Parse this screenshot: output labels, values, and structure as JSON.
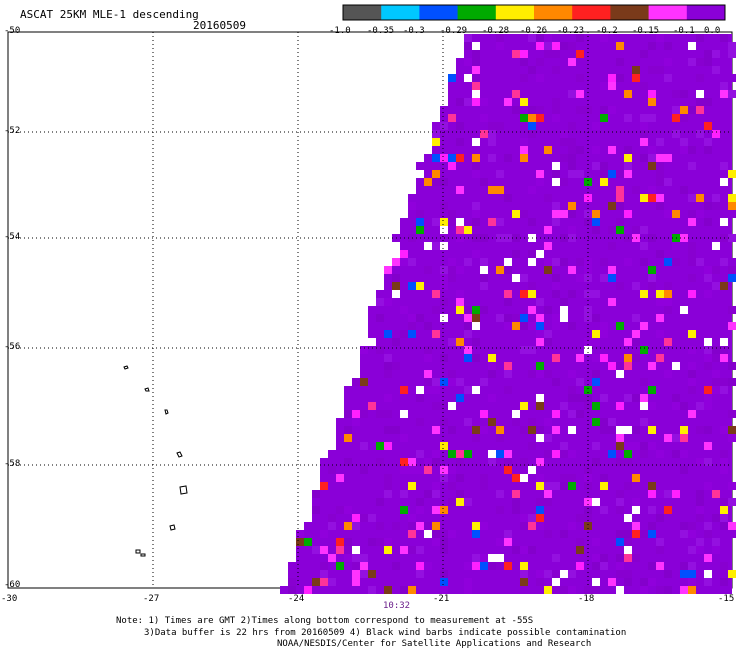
{
  "header": {
    "title": "ASCAT 25KM MLE-1 descending",
    "date": "20160509"
  },
  "colorbar": {
    "labels": [
      "-1.0",
      "-0.35",
      "-0.3",
      "-0.29",
      "-0.28",
      "-0.26",
      "-0.23",
      "-0.2",
      "-0.15",
      "-0.1",
      "0.0"
    ],
    "colors": [
      "#555555",
      "#00c8ff",
      "#0050ff",
      "#00aa00",
      "#ffee00",
      "#ff8800",
      "#ff2020",
      "#7a3a1a",
      "#ff33ff",
      "#8a00d8"
    ]
  },
  "axes": {
    "lat_labels": [
      "-50",
      "-52",
      "-54",
      "-56",
      "-58",
      "-60"
    ],
    "lon_labels": [
      "-30",
      "-27",
      "-24",
      "-21",
      "-18",
      "-15"
    ]
  },
  "time_label": "10:32",
  "notes": {
    "line1": "Note: 1) Times are GMT 2)Times along bottom correspond to measurement at -55S",
    "line2": "3)Data buffer is 22 hrs from 20160509 4) Black wind barbs indicate possible contamination",
    "line3": "NOAA/NESDIS/Center for Satellite Applications and Research"
  }
}
